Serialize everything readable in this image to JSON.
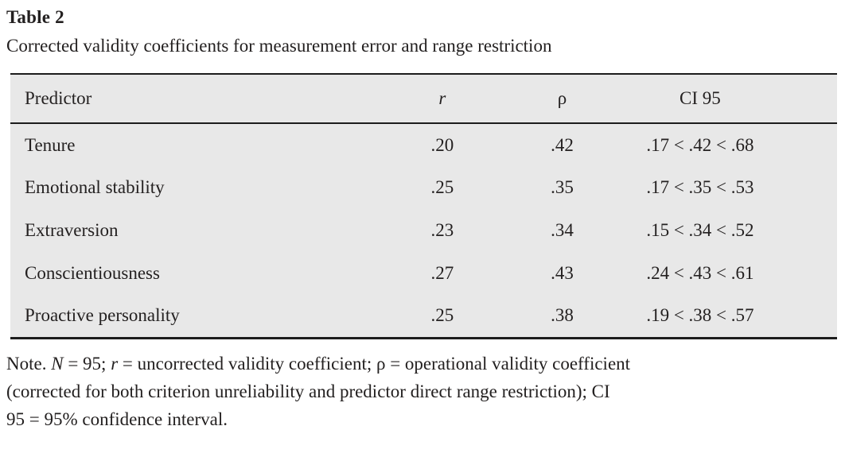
{
  "header": {
    "label": "Table 2",
    "caption": "Corrected validity coefficients for measurement error and range restriction"
  },
  "table": {
    "columns": [
      {
        "key": "predictor",
        "label": "Predictor",
        "italic": false,
        "align": "al"
      },
      {
        "key": "r",
        "label": "r",
        "italic": true,
        "align": "ac"
      },
      {
        "key": "rho",
        "label": "ρ",
        "italic": false,
        "align": "ac"
      },
      {
        "key": "ci",
        "label": "CI 95",
        "italic": false,
        "align": "ci"
      }
    ],
    "rows": [
      {
        "predictor": "Tenure",
        "r": ".20",
        "rho": ".42",
        "ci": ".17 < .42 < .68"
      },
      {
        "predictor": "Emotional stability",
        "r": ".25",
        "rho": ".35",
        "ci": ".17 < .35 < .53"
      },
      {
        "predictor": "Extraversion",
        "r": ".23",
        "rho": ".34",
        "ci": ".15 < .34 < .52"
      },
      {
        "predictor": "Conscientiousness",
        "r": ".27",
        "rho": ".43",
        "ci": ".24 < .43 < .61"
      },
      {
        "predictor": "Proactive personality",
        "r": ".25",
        "rho": ".38",
        "ci": ".19 < .38 < .57"
      }
    ]
  },
  "note": {
    "lines": [
      [
        {
          "text": "Note. ",
          "italic": false
        },
        {
          "text": "N",
          "italic": true
        },
        {
          "text": " = 95; ",
          "italic": false
        },
        {
          "text": "r",
          "italic": true
        },
        {
          "text": " = uncorrected validity coefficient; ρ = operational validity coefficient",
          "italic": false
        }
      ],
      [
        {
          "text": "(corrected for both criterion unreliability and predictor direct range restriction); CI",
          "italic": false
        }
      ],
      [
        {
          "text": "95 = 95% confidence interval.",
          "italic": false
        }
      ]
    ]
  },
  "colors": {
    "page_background": "#ffffff",
    "table_background": "#e8e8e8",
    "rule_color": "#1c1c1c",
    "text_color": "#232020"
  }
}
